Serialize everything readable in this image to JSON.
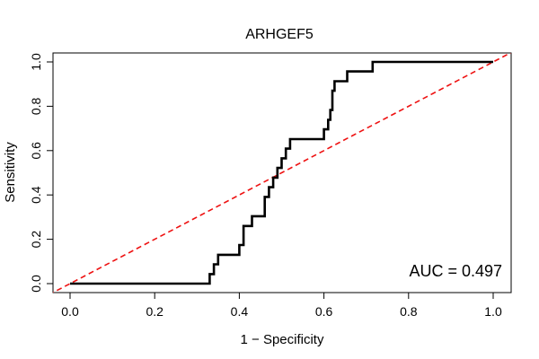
{
  "chart_data": {
    "type": "line",
    "title": "ARHGEF5",
    "xlabel": "1 − Specificity",
    "ylabel": "Sensitivity",
    "xlim": [
      0,
      1
    ],
    "ylim": [
      0,
      1
    ],
    "x_ticks": [
      "0.0",
      "0.2",
      "0.4",
      "0.6",
      "0.8",
      "1.0"
    ],
    "y_ticks": [
      "0.0",
      "0.2",
      "0.4",
      "0.6",
      "0.8",
      "1.0"
    ],
    "grid": false,
    "legend": "none",
    "annotation": "AUC = 0.497",
    "series": [
      {
        "role": "roc-curve",
        "color": "#000000",
        "style": "solid",
        "x": [
          0.0,
          0.33,
          0.33,
          0.34,
          0.34,
          0.35,
          0.35,
          0.4,
          0.4,
          0.41,
          0.41,
          0.43,
          0.43,
          0.46,
          0.46,
          0.47,
          0.47,
          0.48,
          0.48,
          0.49,
          0.49,
          0.5,
          0.5,
          0.51,
          0.51,
          0.52,
          0.52,
          0.6,
          0.6,
          0.61,
          0.61,
          0.615,
          0.615,
          0.62,
          0.62,
          0.625,
          0.625,
          0.655,
          0.655,
          0.715,
          0.715,
          1.0
        ],
        "y": [
          0.0,
          0.0,
          0.043,
          0.043,
          0.087,
          0.087,
          0.13,
          0.13,
          0.174,
          0.174,
          0.26,
          0.26,
          0.304,
          0.304,
          0.391,
          0.391,
          0.435,
          0.435,
          0.478,
          0.478,
          0.522,
          0.522,
          0.565,
          0.565,
          0.609,
          0.609,
          0.652,
          0.652,
          0.696,
          0.696,
          0.739,
          0.739,
          0.783,
          0.783,
          0.87,
          0.87,
          0.913,
          0.913,
          0.957,
          0.957,
          1.0,
          1.0
        ]
      },
      {
        "role": "reference-diagonal",
        "color": "#ee1111",
        "style": "dashed",
        "x": [
          0,
          1
        ],
        "y": [
          0,
          1
        ]
      }
    ]
  }
}
